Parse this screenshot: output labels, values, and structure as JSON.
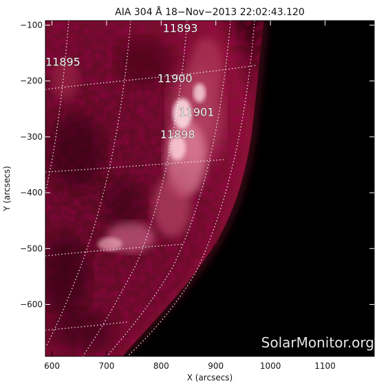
{
  "title": "AIA 304 Å 18−Nov−2013 22:02:43.120",
  "watermark": "SolarMonitor.org",
  "axes": {
    "xlabel": "X (arcsecs)",
    "ylabel": "Y (arcsecs)",
    "xlim": [
      588,
      1190
    ],
    "ylim": [
      -693,
      -92
    ],
    "xticks": [
      600,
      700,
      800,
      900,
      1000,
      1100
    ],
    "yticks": [
      -100,
      -200,
      -300,
      -400,
      -500,
      -600
    ],
    "grid": "heliographic lat/lon dotted"
  },
  "colormap": {
    "background": "#000000",
    "disk_dark": "#3a0010",
    "disk_mid": "#8a0f33",
    "bright": "#e58aa2",
    "brightest": "#ffe3ea"
  },
  "active_regions": [
    {
      "id": "11893",
      "x": 835,
      "y": -105
    },
    {
      "id": "11895",
      "x": 620,
      "y": -165
    },
    {
      "id": "11900",
      "x": 825,
      "y": -195
    },
    {
      "id": "11901",
      "x": 865,
      "y": -255
    },
    {
      "id": "11898",
      "x": 830,
      "y": -295
    }
  ]
}
